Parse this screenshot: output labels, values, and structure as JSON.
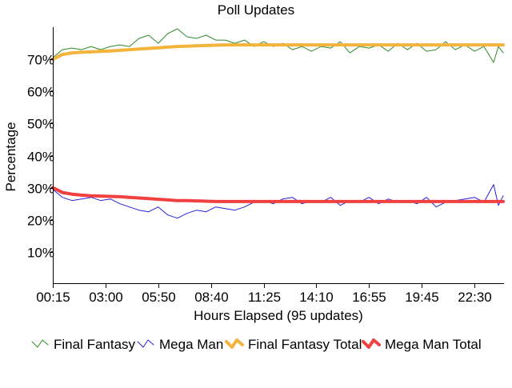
{
  "chart_data": {
    "type": "line",
    "title": "Poll Updates",
    "xlabel": "Hours Elapsed (95 updates)",
    "ylabel": "Percentage",
    "ylim": [
      0,
      80
    ],
    "yticks": [
      10,
      20,
      30,
      40,
      50,
      60,
      70
    ],
    "ytick_labels": [
      "10%",
      "20%",
      "30%",
      "40%",
      "50%",
      "60%",
      "70%"
    ],
    "xlim": [
      0,
      94
    ],
    "xticks": [
      0,
      11,
      22,
      33,
      44,
      55,
      66,
      77,
      88
    ],
    "xtick_labels": [
      "00:15",
      "03:00",
      "05:50",
      "08:40",
      "11:25",
      "14:10",
      "16:55",
      "19:45",
      "22:30"
    ],
    "grid": false,
    "legend_position": "bottom",
    "series": [
      {
        "name": "Final Fantasy",
        "color": "#2e8b2e",
        "style": "thin",
        "x": [
          0,
          2,
          4,
          6,
          8,
          10,
          12,
          14,
          16,
          18,
          20,
          22,
          24,
          26,
          28,
          30,
          32,
          34,
          36,
          38,
          40,
          42,
          44,
          46,
          48,
          50,
          52,
          54,
          56,
          58,
          60,
          62,
          64,
          66,
          68,
          70,
          72,
          74,
          76,
          78,
          80,
          82,
          84,
          86,
          88,
          90,
          92,
          93,
          94
        ],
        "y": [
          70.5,
          73,
          73.5,
          73,
          74,
          73,
          74,
          74.5,
          74,
          76.5,
          77.5,
          75,
          78,
          79.5,
          77,
          76.5,
          77.5,
          76,
          76,
          75,
          76,
          74,
          75.5,
          74,
          75,
          73,
          74,
          72.5,
          74,
          73.5,
          75.5,
          72,
          74,
          73.5,
          74.5,
          72.5,
          75,
          73,
          75,
          72.5,
          73,
          75.5,
          73,
          74.5,
          72.5,
          74,
          69,
          74,
          72
        ]
      },
      {
        "name": "Mega Man",
        "color": "#2222dd",
        "style": "thin",
        "x": [
          0,
          2,
          4,
          6,
          8,
          10,
          12,
          14,
          16,
          18,
          20,
          22,
          24,
          26,
          28,
          30,
          32,
          34,
          36,
          38,
          40,
          42,
          44,
          46,
          48,
          50,
          52,
          54,
          56,
          58,
          60,
          62,
          64,
          66,
          68,
          70,
          72,
          74,
          76,
          78,
          80,
          82,
          84,
          86,
          88,
          90,
          92,
          93,
          94
        ],
        "y": [
          29.5,
          27,
          26,
          26.5,
          27,
          26,
          26.5,
          25,
          24,
          23,
          22.5,
          24,
          21.5,
          20.5,
          22,
          23,
          22.5,
          24,
          23.5,
          23,
          24,
          25.5,
          26,
          25,
          26.5,
          27,
          25,
          26,
          25.5,
          27,
          24.5,
          26,
          25.5,
          27,
          25,
          26.5,
          25.5,
          26,
          25,
          27,
          24,
          25.5,
          26,
          26.5,
          27,
          25.5,
          31,
          24.5,
          27.5
        ]
      },
      {
        "name": "Final Fantasy Total",
        "color": "#f4b43c",
        "style": "thick",
        "x": [
          0,
          2,
          4,
          6,
          8,
          10,
          12,
          14,
          16,
          18,
          20,
          22,
          24,
          26,
          28,
          30,
          32,
          34,
          36,
          38,
          40,
          42,
          44,
          46,
          48,
          50,
          52,
          54,
          56,
          58,
          60,
          62,
          64,
          66,
          68,
          70,
          72,
          74,
          76,
          78,
          80,
          82,
          84,
          86,
          88,
          90,
          92,
          94
        ],
        "y": [
          70,
          71.5,
          72,
          72.2,
          72.3,
          72.5,
          72.6,
          72.8,
          73,
          73.2,
          73.4,
          73.6,
          73.8,
          74,
          74.1,
          74.2,
          74.3,
          74.4,
          74.5,
          74.5,
          74.5,
          74.5,
          74.5,
          74.5,
          74.5,
          74.5,
          74.5,
          74.5,
          74.5,
          74.5,
          74.5,
          74.5,
          74.5,
          74.5,
          74.5,
          74.5,
          74.5,
          74.5,
          74.5,
          74.5,
          74.5,
          74.5,
          74.5,
          74.5,
          74.5,
          74.5,
          74.5,
          74.5
        ]
      },
      {
        "name": "Mega Man Total",
        "color": "#f04040",
        "style": "thick",
        "x": [
          0,
          2,
          4,
          6,
          8,
          10,
          12,
          14,
          16,
          18,
          20,
          22,
          24,
          26,
          28,
          30,
          32,
          34,
          36,
          38,
          40,
          42,
          44,
          46,
          48,
          50,
          52,
          54,
          56,
          58,
          60,
          62,
          64,
          66,
          68,
          70,
          72,
          74,
          76,
          78,
          80,
          82,
          84,
          86,
          88,
          90,
          92,
          94
        ],
        "y": [
          30,
          28.5,
          28,
          27.7,
          27.5,
          27.4,
          27.3,
          27.2,
          27,
          26.8,
          26.6,
          26.4,
          26.2,
          26,
          26,
          25.9,
          25.8,
          25.7,
          25.7,
          25.7,
          25.7,
          25.7,
          25.7,
          25.7,
          25.7,
          25.7,
          25.7,
          25.7,
          25.7,
          25.7,
          25.7,
          25.7,
          25.7,
          25.7,
          25.7,
          25.7,
          25.7,
          25.7,
          25.7,
          25.7,
          25.7,
          25.7,
          25.7,
          25.7,
          25.7,
          25.7,
          25.7,
          25.7
        ]
      }
    ]
  }
}
